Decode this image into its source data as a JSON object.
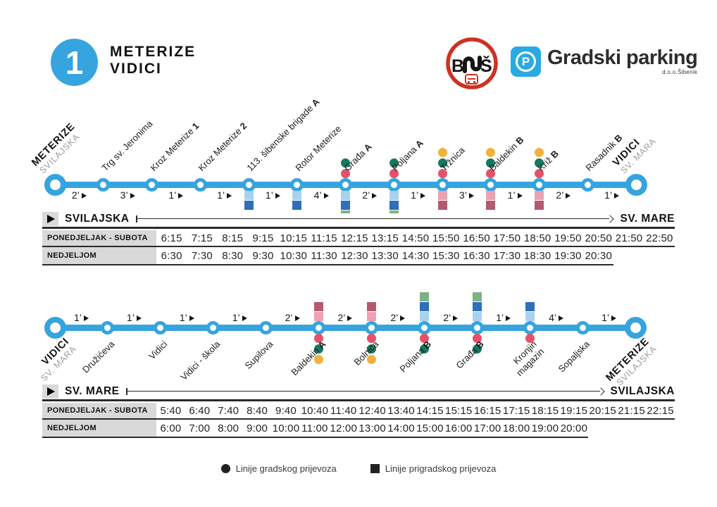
{
  "header": {
    "line_number": "1",
    "title_line1": "METERIZE",
    "title_line2": "VIDICI",
    "bus_logo_letter_b": "B",
    "bus_logo_letter_s": "Š",
    "parking_logo_letter": "P",
    "parking_logo_text": "Gradski parking",
    "parking_logo_sub": "d.o.o.Šibenik"
  },
  "colors": {
    "route_blue": "#35A4DF",
    "cell_gray": "#D9D9D9",
    "logo_red": "#CC3224",
    "parking_blue": "#29ABE2",
    "ink": "#1C1C1C",
    "dot_red": "#E65069",
    "dot_green": "#15795F",
    "dot_yellow": "#F1B23C",
    "sq_lightblue": "#A8D2EE",
    "sq_darkblue": "#2F6EBB",
    "sq_green": "#7DB287",
    "sq_pink": "#ECA2B3",
    "sq_maroon": "#B55970"
  },
  "routes": [
    {
      "stops": [
        {
          "name": "METERIZE",
          "sub": "SVILAJSKA",
          "terminal": true
        },
        {
          "name": "Trg sv. Jeronima"
        },
        {
          "name": "Kroz Meterize",
          "suffix": "1"
        },
        {
          "name": "Kroz Meterize",
          "suffix": "2"
        },
        {
          "name": "113. šibenske brigade",
          "suffix": "A",
          "squares": [
            "lightblue",
            "darkblue"
          ]
        },
        {
          "name": "Rotor Meterize",
          "squares": [
            "lightblue",
            "darkblue"
          ]
        },
        {
          "name": "Građa",
          "suffix": "A",
          "dots": [
            "red",
            "green"
          ],
          "squares": [
            "lightblue",
            "darkblue",
            "green"
          ]
        },
        {
          "name": "Poljana",
          "suffix": "A",
          "dots": [
            "red",
            "green"
          ],
          "squares": [
            "lightblue",
            "darkblue",
            "green"
          ]
        },
        {
          "name": "Tržnica",
          "dots": [
            "red",
            "green",
            "yellow"
          ],
          "squares": [
            "pink",
            "maroon"
          ]
        },
        {
          "name": "Baldekin",
          "suffix": "B",
          "dots": [
            "red",
            "green",
            "yellow"
          ],
          "squares": [
            "pink",
            "maroon"
          ]
        },
        {
          "name": "Križ",
          "suffix": "B",
          "dots": [
            "red",
            "green",
            "yellow"
          ],
          "squares": [
            "pink",
            "maroon"
          ]
        },
        {
          "name": "Rasadnik",
          "suffix": "B"
        },
        {
          "name": "VIDICI",
          "sub": "SV. MARA",
          "terminal": true
        }
      ],
      "times": [
        "2’",
        "3’",
        "1’",
        "1’",
        "1’",
        "4’",
        "2’",
        "1’",
        "3’",
        "1’",
        "2’",
        "1’"
      ]
    },
    {
      "stops": [
        {
          "name": "VIDICI",
          "sub": "SV. MARA",
          "terminal": true
        },
        {
          "name": "Družićeva"
        },
        {
          "name": "Vidici"
        },
        {
          "name": "Vidici - škola"
        },
        {
          "name": "Supilova"
        },
        {
          "name": "Baldekin",
          "suffix": "A",
          "squares": [
            "pink",
            "maroon"
          ],
          "dots": [
            "red",
            "green",
            "yellow"
          ]
        },
        {
          "name": "Bolnica",
          "squares": [
            "pink",
            "maroon"
          ],
          "dots": [
            "red",
            "green",
            "yellow"
          ]
        },
        {
          "name": "Poljana",
          "suffix": "B",
          "squares": [
            "lightblue",
            "darkblue",
            "green"
          ],
          "dots": [
            "red",
            "green"
          ]
        },
        {
          "name": "Građa",
          "suffix": "B",
          "squares": [
            "lightblue",
            "darkblue",
            "green"
          ],
          "dots": [
            "red",
            "green"
          ]
        },
        {
          "name": "Kronjin",
          "name2": "magazin",
          "squares": [
            "lightblue",
            "darkblue"
          ],
          "dots": [
            "red"
          ]
        },
        {
          "name": "Sopaljska"
        },
        {
          "name": "METERIZE",
          "sub": "SVILAJSKA",
          "terminal": true
        }
      ],
      "times": [
        "1’",
        "1’",
        "1’",
        "1’",
        "2’",
        "2’",
        "2’",
        "2’",
        "1’",
        "4’",
        "1’"
      ]
    }
  ],
  "timetables": [
    {
      "from": "SVILAJSKA",
      "to": "SV. MARE",
      "columns": 17,
      "rows": [
        {
          "label": "PONEDJELJAK - SUBOTA",
          "times": [
            "6:15",
            "7:15",
            "8:15",
            "9:15",
            "10:15",
            "11:15",
            "12:15",
            "13:15",
            "14:50",
            "15:50",
            "16:50",
            "17:50",
            "18:50",
            "19:50",
            "20:50",
            "21:50",
            "22:50"
          ]
        },
        {
          "label": "NEDJELJOM",
          "times": [
            "6:30",
            "7:30",
            "8:30",
            "9:30",
            "10:30",
            "11:30",
            "12:30",
            "13:30",
            "14:30",
            "15:30",
            "16:30",
            "17:30",
            "18:30",
            "19:30",
            "20:30"
          ]
        }
      ]
    },
    {
      "from": "SV. MARE",
      "to": "SVILAJSKA",
      "columns": 18,
      "rows": [
        {
          "label": "PONEDJELJAK - SUBOTA",
          "times": [
            "5:40",
            "6:40",
            "7:40",
            "8:40",
            "9:40",
            "10:40",
            "11:40",
            "12:40",
            "13:40",
            "14:15",
            "15:15",
            "16:15",
            "17:15",
            "18:15",
            "19:15",
            "20:15",
            "21:15",
            "22:15"
          ]
        },
        {
          "label": "NEDJELJOM",
          "times": [
            "6:00",
            "7:00",
            "8:00",
            "9:00",
            "10:00",
            "11:00",
            "12:00",
            "13:00",
            "14:00",
            "15:00",
            "16:00",
            "17:00",
            "18:00",
            "19:00",
            "20:00"
          ]
        }
      ]
    }
  ],
  "legend": {
    "items": [
      {
        "marker": "circle",
        "label": "Linije gradskog prijevoza"
      },
      {
        "marker": "square",
        "label": "Linije prigradskog prijevoza"
      }
    ]
  }
}
